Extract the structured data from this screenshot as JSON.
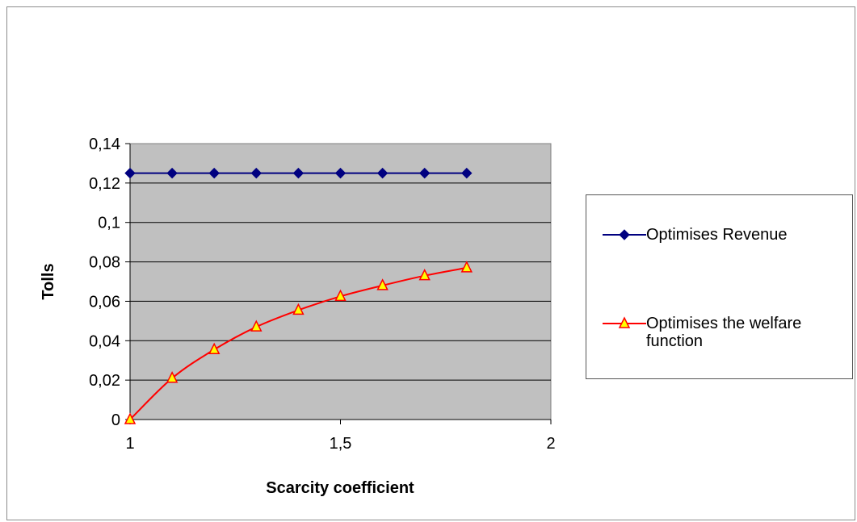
{
  "chart_data": {
    "type": "line",
    "title": "",
    "xlabel": "Scarcity coefficient",
    "ylabel": "Tolls",
    "xlim": [
      1,
      2
    ],
    "ylim": [
      0,
      0.14
    ],
    "x_ticks": [
      "1",
      "1,5",
      "2"
    ],
    "y_ticks": [
      "0",
      "0,02",
      "0,04",
      "0,06",
      "0,08",
      "0,1",
      "0,12",
      "0,14"
    ],
    "grid": true,
    "legend_position": "right",
    "plot_background": "#c0c0c0",
    "series": [
      {
        "name": "Optimises Revenue",
        "color": "#000080",
        "marker": "diamond",
        "x": [
          1,
          1.1,
          1.2,
          1.3,
          1.4,
          1.5,
          1.6,
          1.7,
          1.8
        ],
        "y": [
          0.125,
          0.125,
          0.125,
          0.125,
          0.125,
          0.125,
          0.125,
          0.125,
          0.125
        ]
      },
      {
        "name": "Optimises the welfare function",
        "color": "#ff0000",
        "marker_fill": "#ffff00",
        "marker": "triangle",
        "x": [
          1,
          1.1,
          1.2,
          1.3,
          1.4,
          1.5,
          1.6,
          1.7,
          1.8
        ],
        "y": [
          0,
          0.021,
          0.0355,
          0.047,
          0.0555,
          0.0625,
          0.068,
          0.073,
          0.077
        ]
      }
    ]
  }
}
